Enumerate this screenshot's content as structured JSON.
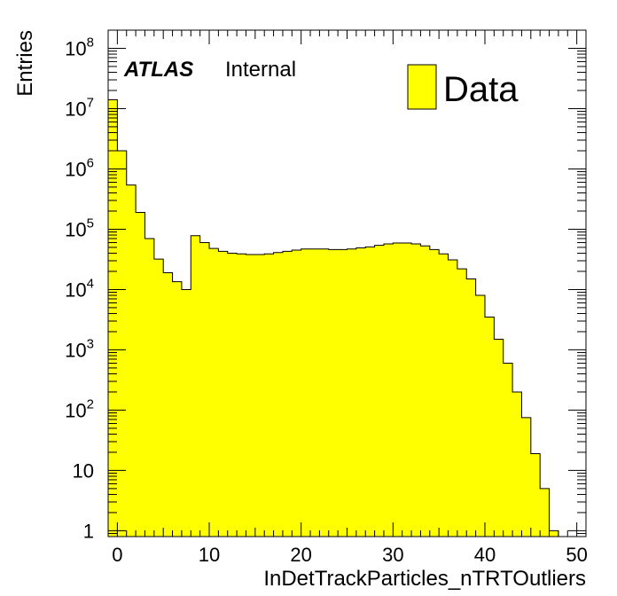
{
  "chart_data": {
    "type": "bar",
    "style": "histogram",
    "xlabel": "InDetTrackParticles_nTRTOutliers",
    "ylabel": "Entries",
    "xlim": [
      -1,
      51
    ],
    "ylim": [
      0.8,
      200000000
    ],
    "yscale": "log",
    "fill_color": "#ffff00",
    "line_color": "#000000",
    "grid": false,
    "legend_position": "top-right",
    "series": [
      {
        "name": "Data",
        "bin_width": 1,
        "x_start": -1,
        "values": [
          14000000,
          2000000,
          540000,
          190000,
          70000,
          32000,
          19000,
          13500,
          10000,
          78000,
          60000,
          48000,
          43000,
          40000,
          39000,
          38000,
          38000,
          39000,
          41000,
          43000,
          45000,
          47000,
          47000,
          47000,
          46000,
          46000,
          47000,
          49000,
          51000,
          54000,
          57000,
          59000,
          59000,
          57000,
          53000,
          46000,
          39000,
          31000,
          22000,
          15000,
          8000,
          3500,
          1500,
          600,
          200,
          75,
          19,
          5,
          1,
          0.5,
          0.3
        ]
      }
    ],
    "x_ticks": [
      0,
      10,
      20,
      30,
      40,
      50
    ],
    "x_tick_labels": [
      "0",
      "10",
      "20",
      "30",
      "40",
      "50"
    ],
    "y_ticks": [
      1,
      10,
      100,
      1000,
      10000,
      100000,
      1000000,
      10000000,
      100000000
    ],
    "y_tick_labels": [
      {
        "base": "1",
        "exp": ""
      },
      {
        "base": "10",
        "exp": ""
      },
      {
        "base": "10",
        "exp": "2"
      },
      {
        "base": "10",
        "exp": "3"
      },
      {
        "base": "10",
        "exp": "4"
      },
      {
        "base": "10",
        "exp": "5"
      },
      {
        "base": "10",
        "exp": "6"
      },
      {
        "base": "10",
        "exp": "7"
      },
      {
        "base": "10",
        "exp": "8"
      }
    ],
    "annotations": {
      "experiment": "ATLAS",
      "status": "Internal"
    },
    "legend": [
      {
        "label": "Data",
        "color": "#ffff00"
      }
    ]
  }
}
